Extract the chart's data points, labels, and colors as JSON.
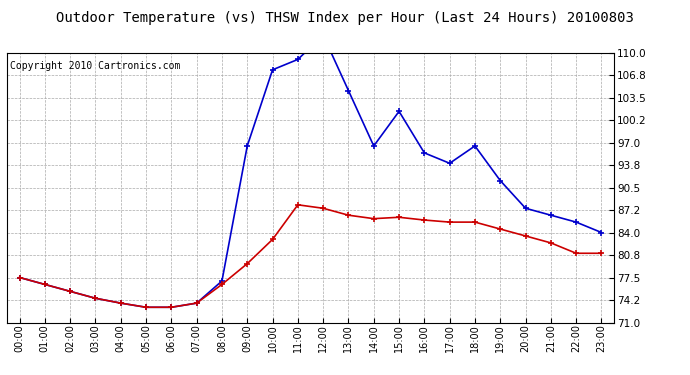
{
  "title": "Outdoor Temperature (vs) THSW Index per Hour (Last 24 Hours) 20100803",
  "copyright": "Copyright 2010 Cartronics.com",
  "hours": [
    "00:00",
    "01:00",
    "02:00",
    "03:00",
    "04:00",
    "05:00",
    "06:00",
    "07:00",
    "08:00",
    "09:00",
    "10:00",
    "11:00",
    "12:00",
    "13:00",
    "14:00",
    "15:00",
    "16:00",
    "17:00",
    "18:00",
    "19:00",
    "20:00",
    "21:00",
    "22:00",
    "23:00"
  ],
  "temp": [
    77.5,
    76.5,
    75.5,
    74.5,
    73.8,
    73.2,
    73.2,
    73.8,
    76.5,
    79.5,
    83.0,
    88.0,
    87.5,
    86.5,
    86.0,
    86.2,
    85.8,
    85.5,
    85.5,
    84.5,
    83.5,
    82.5,
    81.0,
    81.0
  ],
  "thsw": [
    77.5,
    76.5,
    75.5,
    74.5,
    73.8,
    73.2,
    73.2,
    73.8,
    77.0,
    96.5,
    107.5,
    109.0,
    112.5,
    104.5,
    96.5,
    101.5,
    95.5,
    94.0,
    96.5,
    91.5,
    87.5,
    86.5,
    85.5,
    84.0
  ],
  "temp_color": "#cc0000",
  "thsw_color": "#0000cc",
  "ymin": 71.0,
  "ymax": 110.0,
  "yticks": [
    71.0,
    74.2,
    77.5,
    80.8,
    84.0,
    87.2,
    90.5,
    93.8,
    97.0,
    100.2,
    103.5,
    106.8,
    110.0
  ],
  "bg_color": "#ffffff",
  "grid_color": "#aaaaaa",
  "title_fontsize": 10,
  "copyright_fontsize": 7
}
